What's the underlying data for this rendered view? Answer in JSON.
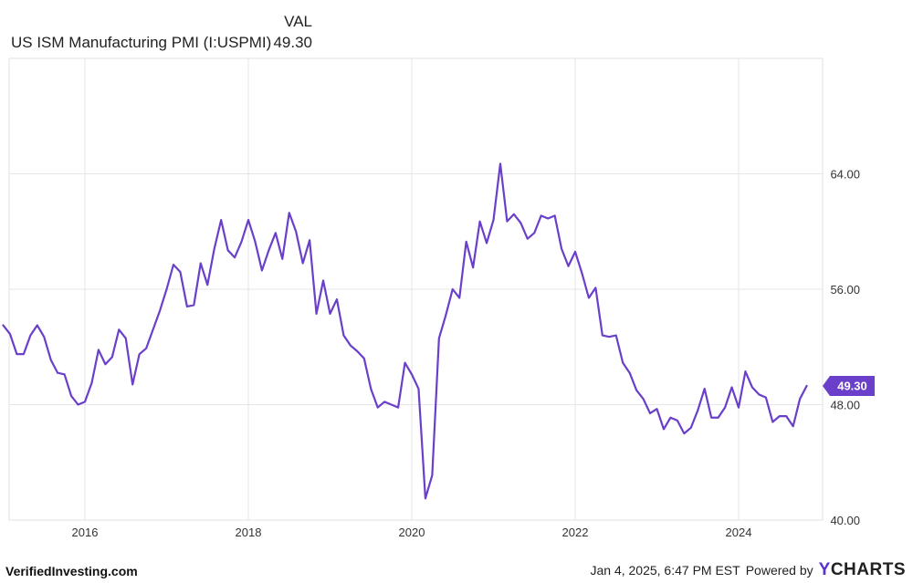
{
  "legend": {
    "column_header": "VAL",
    "series_name": "US ISM Manufacturing PMI (I:USPMI)",
    "value": "49.30"
  },
  "footer": {
    "brand": "VerifiedInvesting.com",
    "timestamp": "Jan 4, 2025, 6:47 PM EST",
    "powered_by": "Powered by",
    "logo_y": "Y",
    "logo_rest": "CHARTS"
  },
  "colors": {
    "line": "#6a3fc9",
    "badge": "#6a3fc9",
    "grid": "#e6e6e6",
    "tick_text": "#333333"
  },
  "chart_data": {
    "type": "line",
    "series": [
      {
        "name": "US ISM Manufacturing PMI (I:USPMI)",
        "color": "#6a3fc9",
        "x_start": "2015-01",
        "frequency": "monthly",
        "values": [
          53.5,
          52.9,
          51.5,
          51.5,
          52.8,
          53.5,
          52.7,
          51.1,
          50.2,
          50.1,
          48.6,
          48.0,
          48.2,
          49.5,
          51.8,
          50.8,
          51.3,
          53.2,
          52.6,
          49.4,
          51.5,
          51.9,
          53.2,
          54.5,
          56.0,
          57.7,
          57.2,
          54.8,
          54.9,
          57.8,
          56.3,
          58.8,
          60.8,
          58.7,
          58.2,
          59.3,
          60.8,
          59.3,
          57.3,
          58.7,
          59.9,
          58.1,
          61.3,
          60.0,
          57.8,
          59.4,
          54.3,
          56.6,
          54.3,
          55.3,
          52.8,
          52.1,
          51.7,
          51.2,
          49.1,
          47.8,
          48.2,
          48.0,
          47.8,
          50.9,
          50.1,
          49.1,
          41.5,
          43.1,
          52.6,
          54.2,
          56.0,
          55.4,
          59.3,
          57.5,
          60.7,
          59.2,
          60.8,
          64.7,
          60.7,
          61.2,
          60.6,
          59.5,
          59.9,
          61.1,
          60.9,
          61.1,
          58.8,
          57.6,
          58.6,
          57.1,
          55.4,
          56.1,
          52.8,
          52.7,
          52.8,
          50.9,
          50.2,
          49.0,
          48.4,
          47.4,
          47.7,
          46.3,
          47.1,
          46.9,
          46.0,
          46.4,
          47.6,
          49.1,
          47.1,
          47.1,
          47.8,
          49.2,
          47.8,
          50.3,
          49.2,
          48.7,
          48.5,
          46.8,
          47.2,
          47.2,
          46.5,
          48.4,
          49.3
        ]
      }
    ],
    "x_tick_labels": [
      "2016",
      "2018",
      "2020",
      "2022",
      "2024"
    ],
    "y_tick_labels": [
      "40.00",
      "48.00",
      "56.00",
      "64.00"
    ],
    "y_ticks": [
      40,
      48,
      56,
      64
    ],
    "ylim": [
      40,
      72
    ],
    "grid": true,
    "last_value_label": "49.30"
  }
}
